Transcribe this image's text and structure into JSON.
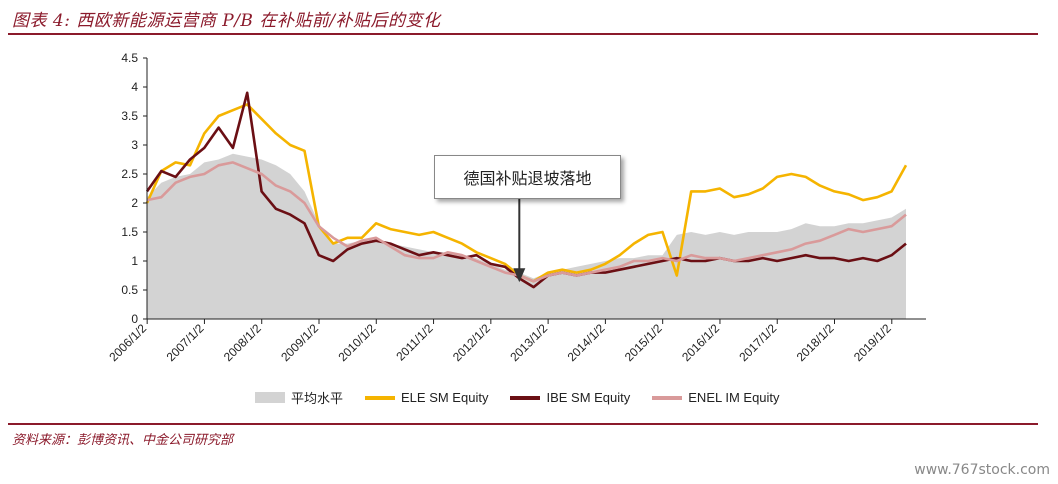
{
  "figure": {
    "title": "图表 4:  西欧新能源运营商 P/B 在补贴前/补贴后的变化",
    "source": "资料来源：彭博资讯、中金公司研究部",
    "watermark": "www.767stock.com"
  },
  "colors": {
    "accent": "#8B1A2B",
    "area": "#D3D3D3",
    "ele": "#F5B400",
    "ibe": "#6B0F14",
    "enel": "#D99A9A"
  },
  "chart_data": {
    "type": "line",
    "title": "",
    "xlabel": "",
    "ylabel": "",
    "ylim": [
      0,
      4.5
    ],
    "yticks": [
      "0",
      "0.5",
      "1",
      "1.5",
      "2",
      "2.5",
      "3",
      "3.5",
      "4",
      "4.5"
    ],
    "xticks": [
      "2006/1/2",
      "2007/1/2",
      "2008/1/2",
      "2009/1/2",
      "2010/1/2",
      "2011/1/2",
      "2012/1/2",
      "2013/1/2",
      "2014/1/2",
      "2015/1/2",
      "2016/1/2",
      "2017/1/2",
      "2018/1/2",
      "2019/1/2"
    ],
    "x": [
      2006.0,
      2006.25,
      2006.5,
      2006.75,
      2007.0,
      2007.25,
      2007.5,
      2007.75,
      2008.0,
      2008.25,
      2008.5,
      2008.75,
      2009.0,
      2009.25,
      2009.5,
      2009.75,
      2010.0,
      2010.25,
      2010.5,
      2010.75,
      2011.0,
      2011.25,
      2011.5,
      2011.75,
      2012.0,
      2012.25,
      2012.5,
      2012.75,
      2013.0,
      2013.25,
      2013.5,
      2013.75,
      2014.0,
      2014.25,
      2014.5,
      2014.75,
      2015.0,
      2015.25,
      2015.5,
      2015.75,
      2016.0,
      2016.25,
      2016.5,
      2016.75,
      2017.0,
      2017.25,
      2017.5,
      2017.75,
      2018.0,
      2018.25,
      2018.5,
      2018.75,
      2019.0,
      2019.25
    ],
    "series": [
      {
        "name": "平均水平",
        "kind": "area",
        "color": "#D3D3D3",
        "values": [
          2.1,
          2.35,
          2.45,
          2.5,
          2.7,
          2.75,
          2.85,
          2.8,
          2.75,
          2.65,
          2.5,
          2.2,
          1.65,
          1.3,
          1.3,
          1.35,
          1.35,
          1.3,
          1.25,
          1.2,
          1.15,
          1.15,
          1.1,
          1.05,
          0.95,
          0.85,
          0.8,
          0.7,
          0.8,
          0.85,
          0.9,
          0.95,
          1.0,
          1.05,
          1.05,
          1.1,
          1.1,
          1.45,
          1.5,
          1.45,
          1.5,
          1.45,
          1.5,
          1.5,
          1.5,
          1.55,
          1.65,
          1.6,
          1.6,
          1.65,
          1.65,
          1.7,
          1.75,
          1.9
        ]
      },
      {
        "name": "ELE SM Equity",
        "kind": "line",
        "color": "#F5B400",
        "values": [
          2.0,
          2.55,
          2.7,
          2.65,
          3.2,
          3.5,
          3.6,
          3.7,
          3.45,
          3.2,
          3.0,
          2.9,
          1.6,
          1.3,
          1.4,
          1.4,
          1.65,
          1.55,
          1.5,
          1.45,
          1.5,
          1.4,
          1.3,
          1.15,
          1.05,
          0.95,
          0.75,
          0.65,
          0.8,
          0.85,
          0.8,
          0.85,
          0.95,
          1.1,
          1.3,
          1.45,
          1.5,
          0.75,
          2.2,
          2.2,
          2.25,
          2.1,
          2.15,
          2.25,
          2.45,
          2.5,
          2.45,
          2.3,
          2.2,
          2.15,
          2.05,
          2.1,
          2.2,
          2.65
        ]
      },
      {
        "name": "IBE SM Equity",
        "kind": "line",
        "color": "#6B0F14",
        "values": [
          2.2,
          2.55,
          2.45,
          2.75,
          2.95,
          3.3,
          2.95,
          3.9,
          2.2,
          1.9,
          1.8,
          1.65,
          1.1,
          1.0,
          1.2,
          1.3,
          1.35,
          1.3,
          1.2,
          1.1,
          1.15,
          1.1,
          1.05,
          1.1,
          0.95,
          0.9,
          0.7,
          0.55,
          0.75,
          0.8,
          0.75,
          0.8,
          0.8,
          0.85,
          0.9,
          0.95,
          1.0,
          1.05,
          1.0,
          1.0,
          1.05,
          1.0,
          1.0,
          1.05,
          1.0,
          1.05,
          1.1,
          1.05,
          1.05,
          1.0,
          1.05,
          1.0,
          1.1,
          1.3
        ]
      },
      {
        "name": "ENEL IM Equity",
        "kind": "line",
        "color": "#D99A9A",
        "values": [
          2.05,
          2.1,
          2.35,
          2.45,
          2.5,
          2.65,
          2.7,
          2.6,
          2.5,
          2.3,
          2.2,
          2.0,
          1.6,
          1.4,
          1.25,
          1.35,
          1.4,
          1.25,
          1.1,
          1.05,
          1.05,
          1.15,
          1.1,
          1.0,
          0.9,
          0.8,
          0.75,
          0.65,
          0.75,
          0.8,
          0.75,
          0.8,
          0.85,
          0.9,
          1.0,
          1.0,
          1.05,
          1.0,
          1.1,
          1.05,
          1.05,
          1.0,
          1.05,
          1.1,
          1.15,
          1.2,
          1.3,
          1.35,
          1.45,
          1.55,
          1.5,
          1.55,
          1.6,
          1.8
        ]
      }
    ],
    "annotation": {
      "text": "德国补贴退坡落地",
      "x": 2012.5,
      "y": 0.6
    },
    "legend_position": "bottom",
    "grid": false
  }
}
